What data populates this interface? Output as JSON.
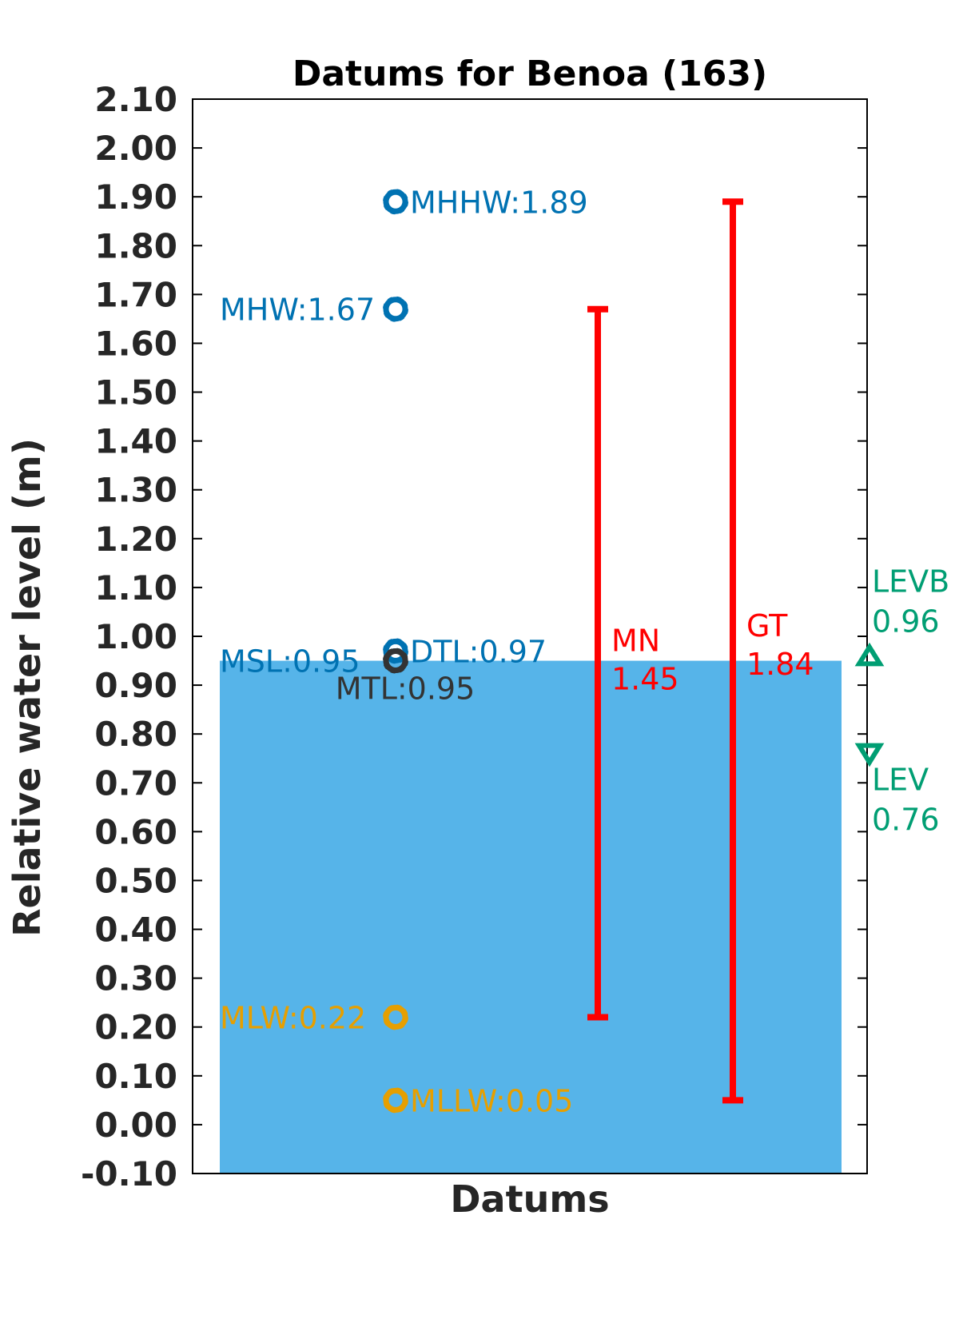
{
  "chart_data": {
    "type": "datum-diagram",
    "title": "Datums for Benoa (163)",
    "xlabel": "Datums",
    "ylabel": "Relative water level (m)",
    "ylim": [
      -0.1,
      2.1
    ],
    "ytick_step": 0.1,
    "ytick_labels": [
      "-0.10",
      "0.00",
      "0.10",
      "0.20",
      "0.30",
      "0.40",
      "0.50",
      "0.60",
      "0.70",
      "0.80",
      "0.90",
      "1.00",
      "1.10",
      "1.20",
      "1.30",
      "1.40",
      "1.50",
      "1.60",
      "1.70",
      "1.80",
      "1.90",
      "2.00",
      "2.10"
    ],
    "msl_bar": {
      "value": 0.95,
      "color": "#56B4E9"
    },
    "datums": [
      {
        "name": "MHHW",
        "value": 1.89,
        "label": "MHHW:1.89",
        "color": "#0072B2",
        "side": "right"
      },
      {
        "name": "MHW",
        "value": 1.67,
        "label": "MHW:1.67",
        "color": "#0072B2",
        "side": "left"
      },
      {
        "name": "DTL",
        "value": 0.97,
        "label": "DTL:0.97",
        "color": "#0072B2",
        "side": "right"
      },
      {
        "name": "MSL",
        "value": 0.95,
        "label": "MSL:0.95",
        "color": "#0072B2",
        "side": "left"
      },
      {
        "name": "MTL",
        "value": 0.95,
        "label": "MTL:0.95",
        "color": "#333333",
        "side": "below"
      },
      {
        "name": "MLW",
        "value": 0.22,
        "label": "MLW:0.22",
        "color": "#E69F00",
        "side": "left"
      },
      {
        "name": "MLLW",
        "value": 0.05,
        "label": "MLLW:0.05",
        "color": "#E69F00",
        "side": "right"
      }
    ],
    "ranges": [
      {
        "name": "MN",
        "value": "1.45",
        "low": 0.22,
        "high": 1.67,
        "color": "#FF0000"
      },
      {
        "name": "GT",
        "value": "1.84",
        "low": 0.05,
        "high": 1.89,
        "color": "#FF0000"
      }
    ],
    "extremes": [
      {
        "name": "LEVB",
        "value": 0.96,
        "label_value": "0.96",
        "marker": "triangle-up",
        "color": "#009E73"
      },
      {
        "name": "LEV",
        "value": 0.76,
        "label_value": "0.76",
        "marker": "triangle-down",
        "color": "#009E73"
      }
    ]
  }
}
